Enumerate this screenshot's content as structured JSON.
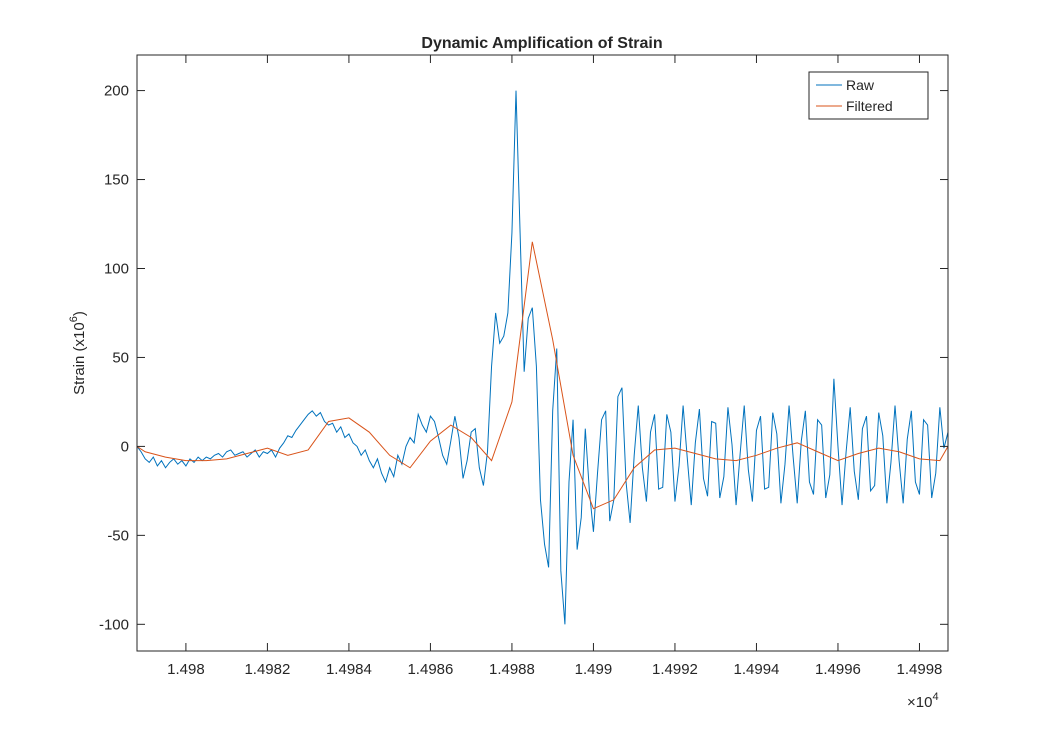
{
  "chart_data": {
    "type": "line",
    "title": "Dynamic Amplification of Strain",
    "ylabel": "Strain (x10",
    "ylabel_exp": "6",
    "ylabel_end": ")",
    "x_multiplier": "×10",
    "x_multiplier_exp": "4",
    "xlim": [
      14978.8,
      14998.7
    ],
    "ylim": [
      -115,
      220
    ],
    "xticks": [
      {
        "value": 14980,
        "label": "1.498"
      },
      {
        "value": 14982,
        "label": "1.4982"
      },
      {
        "value": 14984,
        "label": "1.4984"
      },
      {
        "value": 14986,
        "label": "1.4986"
      },
      {
        "value": 14988,
        "label": "1.4988"
      },
      {
        "value": 14990,
        "label": "1.499"
      },
      {
        "value": 14992,
        "label": "1.4992"
      },
      {
        "value": 14994,
        "label": "1.4994"
      },
      {
        "value": 14996,
        "label": "1.4996"
      },
      {
        "value": 14998,
        "label": "1.4998"
      }
    ],
    "yticks": [
      -100,
      -50,
      0,
      50,
      100,
      150,
      200
    ],
    "grid": false,
    "legend": "top-right",
    "series": [
      {
        "name": "Raw",
        "color": "#0072bd",
        "x": [
          14978.8,
          14978.9,
          14979,
          14979.1,
          14979.2,
          14979.3,
          14979.4,
          14979.5,
          14979.6,
          14979.7,
          14979.8,
          14979.9,
          14980,
          14980.1,
          14980.2,
          14980.3,
          14980.4,
          14980.5,
          14980.6,
          14980.7,
          14980.8,
          14980.9,
          14981,
          14981.1,
          14981.2,
          14981.3,
          14981.4,
          14981.5,
          14981.6,
          14981.7,
          14981.8,
          14981.9,
          14982,
          14982.1,
          14982.2,
          14982.3,
          14982.4,
          14982.5,
          14982.6,
          14982.7,
          14982.8,
          14982.9,
          14983,
          14983.1,
          14983.2,
          14983.3,
          14983.4,
          14983.5,
          14983.6,
          14983.7,
          14983.8,
          14983.9,
          14984,
          14984.1,
          14984.2,
          14984.3,
          14984.4,
          14984.5,
          14984.6,
          14984.7,
          14984.8,
          14984.9,
          14985,
          14985.1,
          14985.2,
          14985.3,
          14985.4,
          14985.5,
          14985.6,
          14985.7,
          14985.8,
          14985.9,
          14986,
          14986.1,
          14986.2,
          14986.3,
          14986.4,
          14986.5,
          14986.6,
          14986.7,
          14986.8,
          14986.9,
          14987,
          14987.1,
          14987.2,
          14987.3,
          14987.4,
          14987.5,
          14987.6,
          14987.7,
          14987.8,
          14987.9,
          14988,
          14988.1,
          14988.2,
          14988.3,
          14988.4,
          14988.5,
          14988.6,
          14988.7,
          14988.8,
          14988.9,
          14989,
          14989.1,
          14989.2,
          14989.3,
          14989.4,
          14989.5,
          14989.6,
          14989.7,
          14989.8,
          14989.9,
          14990,
          14990.1,
          14990.2,
          14990.3,
          14990.4,
          14990.5,
          14990.6,
          14990.7,
          14990.8,
          14990.9,
          14991,
          14991.1,
          14991.2,
          14991.3,
          14991.4,
          14991.5,
          14991.6,
          14991.7,
          14991.8,
          14991.9,
          14992,
          14992.1,
          14992.2,
          14992.3,
          14992.4,
          14992.5,
          14992.6,
          14992.7,
          14992.8,
          14992.9,
          14993,
          14993.1,
          14993.2,
          14993.3,
          14993.4,
          14993.5,
          14993.6,
          14993.7,
          14993.8,
          14993.9,
          14994,
          14994.1,
          14994.2,
          14994.3,
          14994.4,
          14994.5,
          14994.6,
          14994.7,
          14994.8,
          14994.9,
          14995,
          14995.1,
          14995.2,
          14995.3,
          14995.4,
          14995.5,
          14995.6,
          14995.7,
          14995.8,
          14995.9,
          14996,
          14996.1,
          14996.2,
          14996.3,
          14996.4,
          14996.5,
          14996.6,
          14996.7,
          14996.8,
          14996.9,
          14997,
          14997.1,
          14997.2,
          14997.3,
          14997.4,
          14997.5,
          14997.6,
          14997.7,
          14997.8,
          14997.9,
          14998,
          14998.1,
          14998.2,
          14998.3,
          14998.4,
          14998.5,
          14998.6,
          14998.7
        ],
        "values": [
          0,
          -3,
          -7,
          -9,
          -6,
          -11,
          -8,
          -12,
          -9,
          -7,
          -10,
          -8,
          -11,
          -7,
          -9,
          -6,
          -8,
          -6,
          -7,
          -5,
          -4,
          -6,
          -3,
          -2,
          -5,
          -4,
          -3,
          -6,
          -4,
          -2,
          -6,
          -3,
          -4,
          -2,
          -6,
          -1,
          2,
          6,
          5,
          9,
          12,
          15,
          18,
          20,
          17,
          19,
          14,
          12,
          13,
          8,
          11,
          5,
          7,
          2,
          0,
          -5,
          -2,
          -8,
          -12,
          -7,
          -15,
          -20,
          -12,
          -17,
          -5,
          -10,
          0,
          5,
          2,
          18,
          12,
          8,
          17,
          14,
          5,
          -5,
          -10,
          3,
          17,
          5,
          -18,
          -8,
          8,
          10,
          -12,
          -22,
          -3,
          45,
          75,
          58,
          62,
          75,
          120,
          200,
          120,
          42,
          72,
          78,
          45,
          -30,
          -55,
          -68,
          20,
          55,
          -70,
          -100,
          -20,
          15,
          -58,
          -40,
          10,
          -25,
          -48,
          -15,
          15,
          20,
          -42,
          -30,
          28,
          33,
          -20,
          -43,
          -5,
          23,
          -12,
          -31,
          8,
          18,
          -24,
          -23,
          18,
          8,
          -31,
          -11,
          23,
          -6,
          -33,
          2,
          21,
          -18,
          -28,
          14,
          13,
          -29,
          -17,
          22,
          1,
          -33,
          -4,
          23,
          -13,
          -31,
          9,
          17,
          -24,
          -23,
          19,
          7,
          -32,
          -10,
          23,
          -6,
          -32,
          3,
          20,
          -20,
          -27,
          15,
          12,
          -29,
          -16,
          38,
          0,
          -33,
          -3,
          22,
          -14,
          -30,
          10,
          17,
          -25,
          -22,
          19,
          6,
          -32,
          -9,
          23,
          -8,
          -32,
          4,
          20,
          -20,
          -27,
          15,
          12,
          -29,
          -15,
          22,
          -1,
          8
        ]
      },
      {
        "name": "Filtered",
        "color": "#d95319",
        "x": [
          14978.8,
          14979,
          14979.5,
          14980,
          14980.5,
          14981,
          14981.5,
          14982,
          14982.5,
          14983,
          14983.5,
          14984,
          14984.5,
          14985,
          14985.5,
          14986,
          14986.5,
          14987,
          14987.5,
          14988,
          14988.5,
          14989,
          14989.5,
          14990,
          14990.5,
          14991,
          14991.5,
          14992,
          14992.5,
          14993,
          14993.5,
          14994,
          14994.5,
          14995,
          14995.5,
          14996,
          14996.5,
          14997,
          14997.5,
          14998,
          14998.5,
          14998.7
        ],
        "values": [
          0,
          -3,
          -6,
          -8,
          -8,
          -7,
          -4,
          -1,
          -5,
          -2,
          14,
          16,
          8,
          -5,
          -12,
          3,
          12,
          5,
          -8,
          25,
          115,
          60,
          -5,
          -35,
          -30,
          -12,
          -2,
          -1,
          -4,
          -7,
          -8,
          -5,
          -1,
          2,
          -3,
          -8,
          -4,
          -1,
          -3,
          -7,
          -8,
          0
        ]
      }
    ]
  }
}
